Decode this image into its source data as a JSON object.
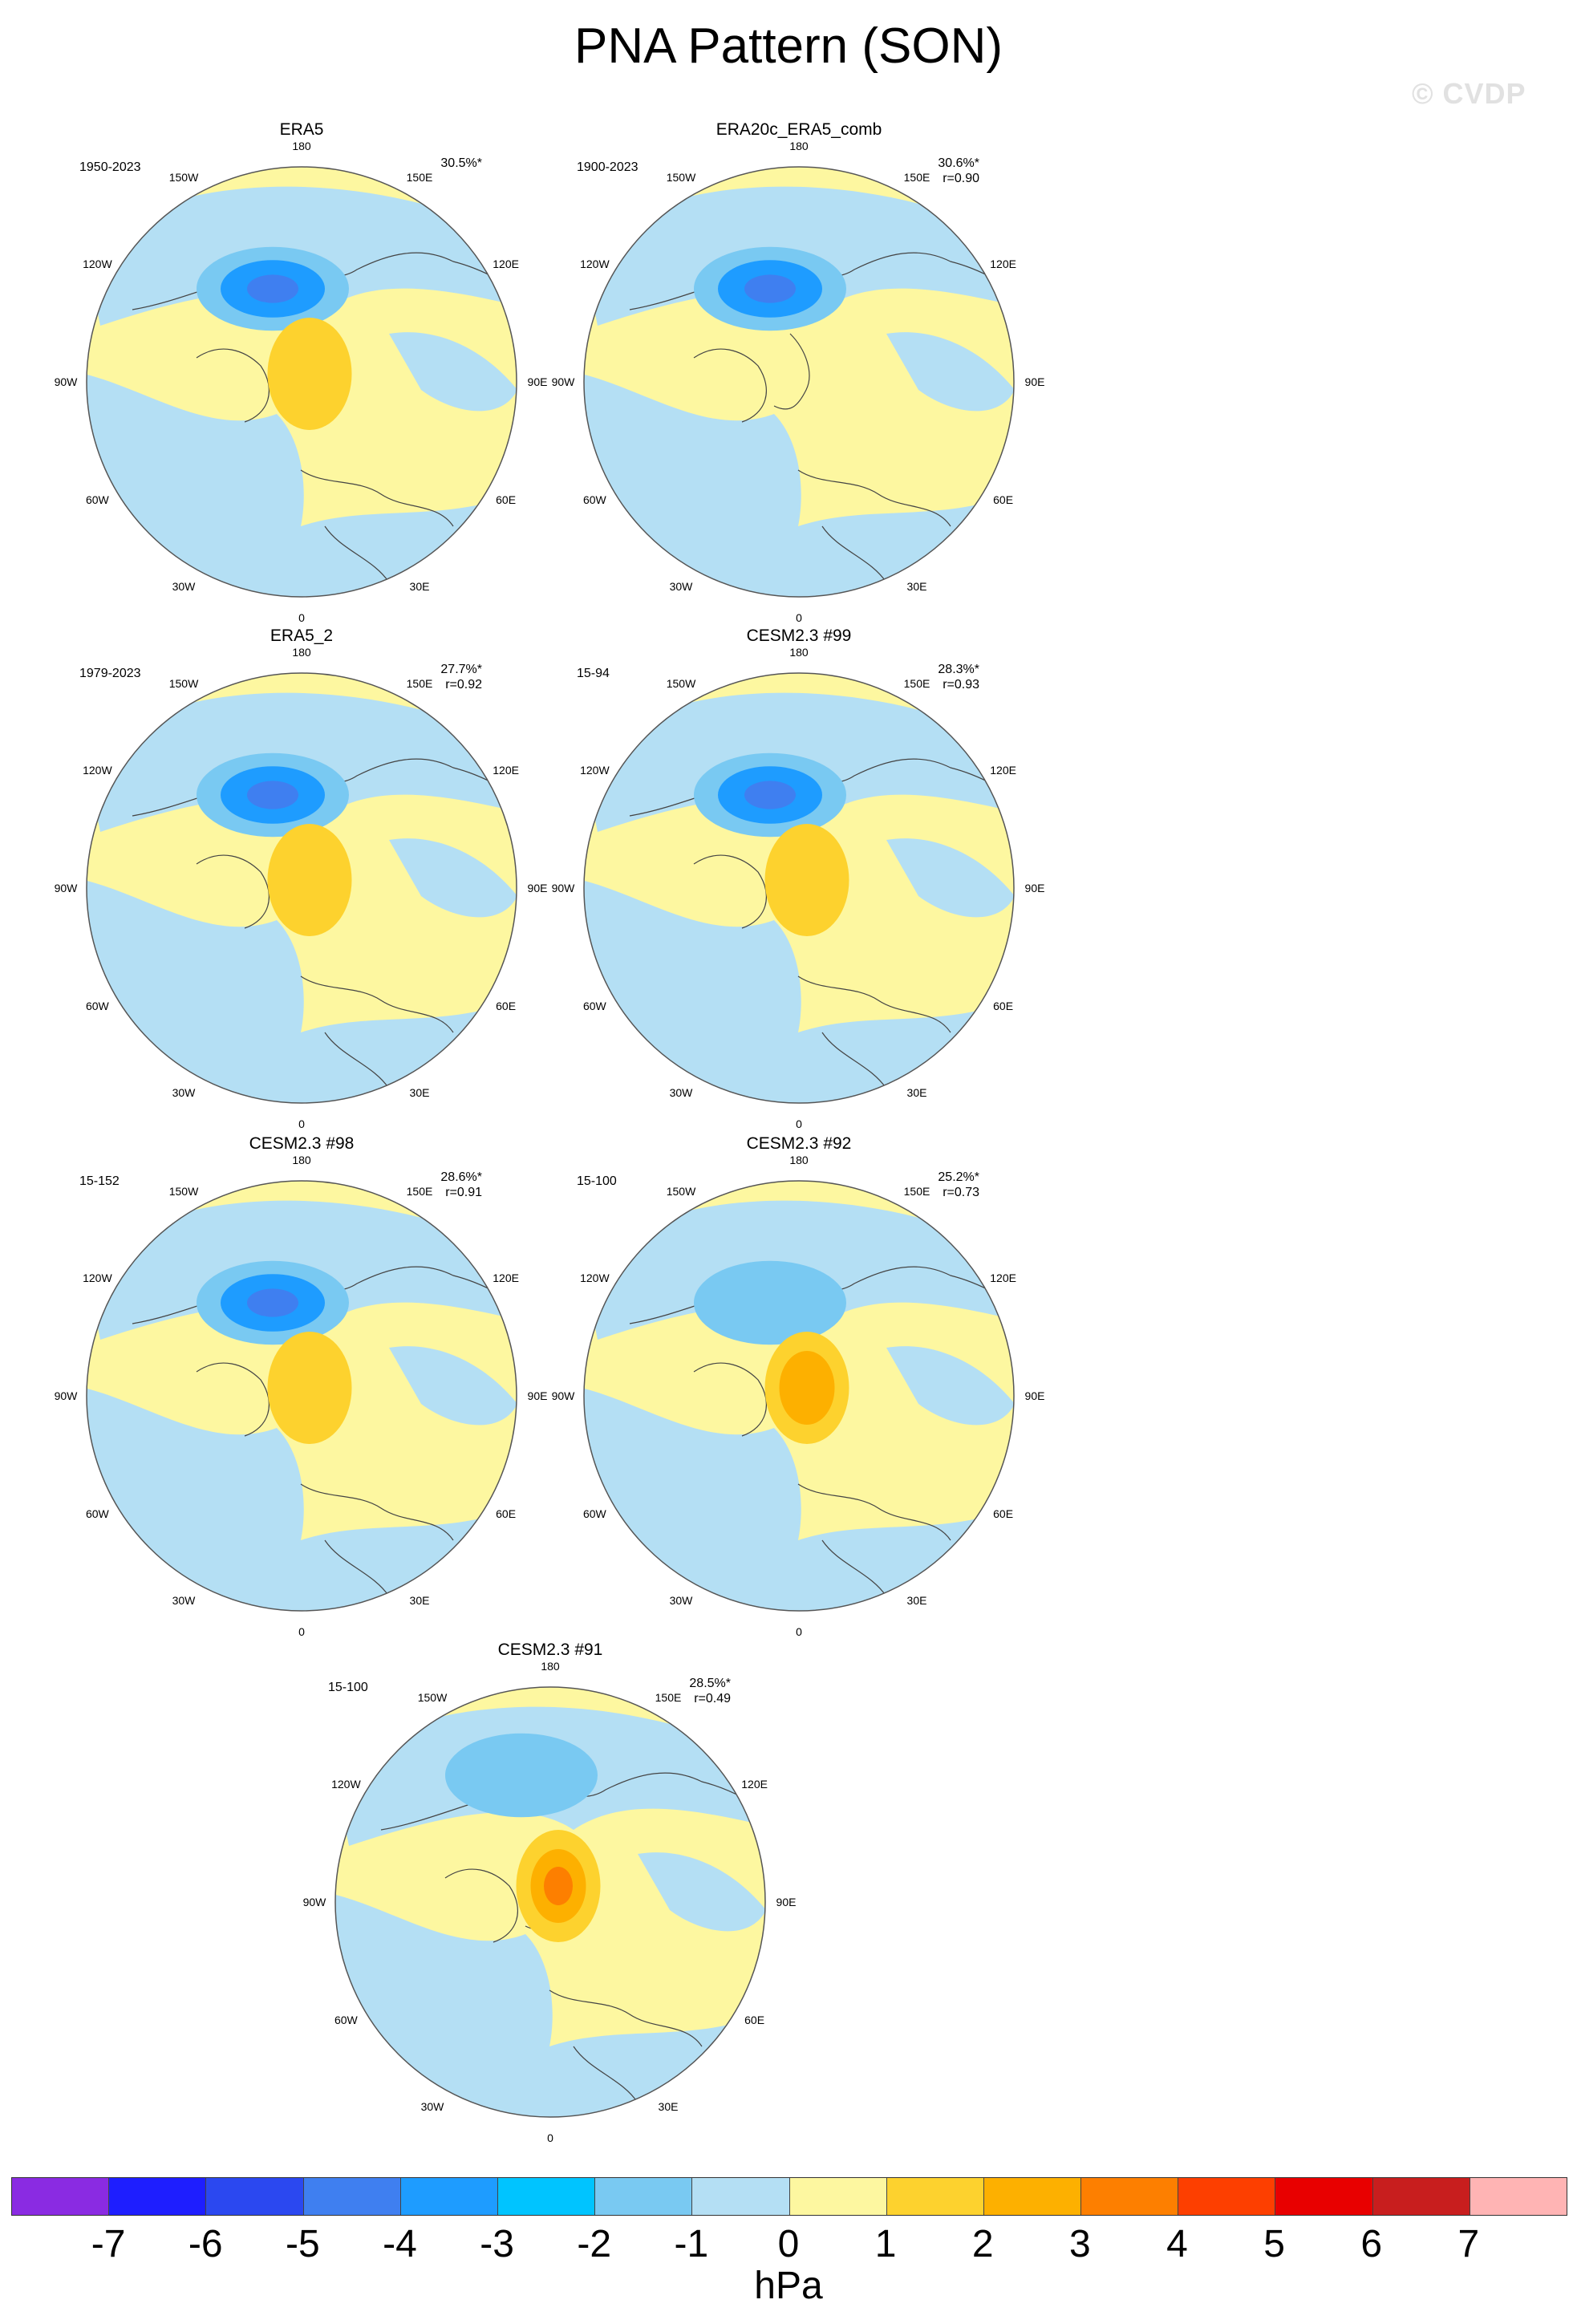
{
  "title": "PNA Pattern (SON)",
  "watermark": "© CVDP",
  "lon_labels": [
    "180",
    "150E",
    "120E",
    "90E",
    "60E",
    "30E",
    "0",
    "30W",
    "60W",
    "90W",
    "120W",
    "150W"
  ],
  "panels": [
    {
      "name": "ERA5",
      "period": "1950-2023",
      "pct": "30.5%*",
      "r": ""
    },
    {
      "name": "ERA20c_ERA5_comb",
      "period": "1900-2023",
      "pct": "30.6%*",
      "r": "r=0.90"
    },
    {
      "name": "ERA5_2",
      "period": "1979-2023",
      "pct": "27.7%*",
      "r": "r=0.92"
    },
    {
      "name": "CESM2.3 #99",
      "period": "15-94",
      "pct": "28.3%*",
      "r": "r=0.93"
    },
    {
      "name": "CESM2.3 #98",
      "period": "15-152",
      "pct": "28.6%*",
      "r": "r=0.91"
    },
    {
      "name": "CESM2.3 #92",
      "period": "15-100",
      "pct": "25.2%*",
      "r": "r=0.73"
    },
    {
      "name": "CESM2.3 #91",
      "period": "15-100",
      "pct": "28.5%*",
      "r": "r=0.49"
    }
  ],
  "colorbar": {
    "colors": [
      "#8a2be2",
      "#1e1eff",
      "#2b48f0",
      "#3f7ff0",
      "#1e9cff",
      "#00c4ff",
      "#79c9f2",
      "#b4dff4",
      "#fdf7a0",
      "#fdd22e",
      "#fdb000",
      "#fd7f00",
      "#fd3f00",
      "#e80000",
      "#c81e1e",
      "#ffb4b4"
    ],
    "ticks": [
      "-7",
      "-6",
      "-5",
      "-4",
      "-3",
      "-2",
      "-1",
      "0",
      "1",
      "2",
      "3",
      "4",
      "5",
      "6",
      "7"
    ],
    "unit": "hPa"
  },
  "palette": {
    "neg_light": "#b4dff4",
    "pos_light": "#fdf7a0",
    "coast": "#444444"
  }
}
